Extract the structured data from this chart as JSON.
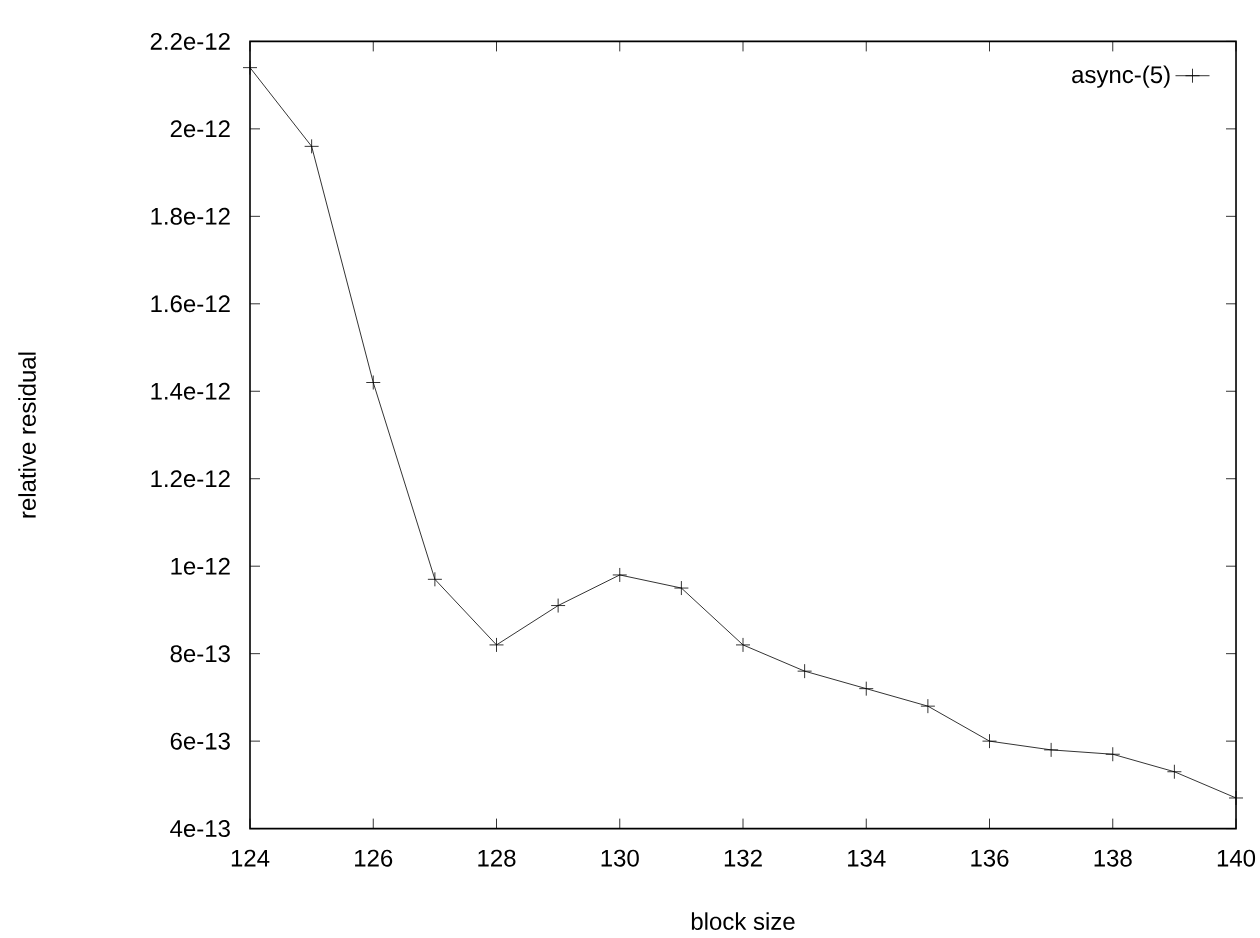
{
  "chart_data": {
    "type": "line",
    "xlabel": "block size",
    "ylabel": "relative residual",
    "x": [
      124,
      125,
      126,
      127,
      128,
      129,
      130,
      131,
      132,
      133,
      134,
      135,
      136,
      137,
      138,
      139,
      140
    ],
    "series": [
      {
        "name": "async-(5)",
        "color": "#000000",
        "values": [
          2.14e-12,
          1.96e-12,
          1.42e-12,
          9.7e-13,
          8.2e-13,
          9.1e-13,
          9.8e-13,
          9.5e-13,
          8.2e-13,
          7.6e-13,
          7.2e-13,
          6.8e-13,
          6e-13,
          5.8e-13,
          5.7e-13,
          5.3e-13,
          4.7e-13
        ]
      }
    ],
    "xlim": [
      124,
      140
    ],
    "xticks": [
      124,
      126,
      128,
      130,
      132,
      134,
      136,
      138,
      140
    ],
    "ylim": [
      4e-13,
      2.2e-12
    ],
    "yticks": [
      {
        "value": 4e-13,
        "label": "4e-13"
      },
      {
        "value": 6e-13,
        "label": "6e-13"
      },
      {
        "value": 8e-13,
        "label": "8e-13"
      },
      {
        "value": 1e-12,
        "label": "1e-12"
      },
      {
        "value": 1.2e-12,
        "label": "1.2e-12"
      },
      {
        "value": 1.4e-12,
        "label": "1.4e-12"
      },
      {
        "value": 1.6e-12,
        "label": "1.6e-12"
      },
      {
        "value": 1.8e-12,
        "label": "1.8e-12"
      },
      {
        "value": 2e-12,
        "label": "2e-12"
      },
      {
        "value": 2.2e-12,
        "label": "2.2e-12"
      }
    ],
    "legend": "top right",
    "marker": "cross",
    "line_style": "solid",
    "grid": false
  }
}
